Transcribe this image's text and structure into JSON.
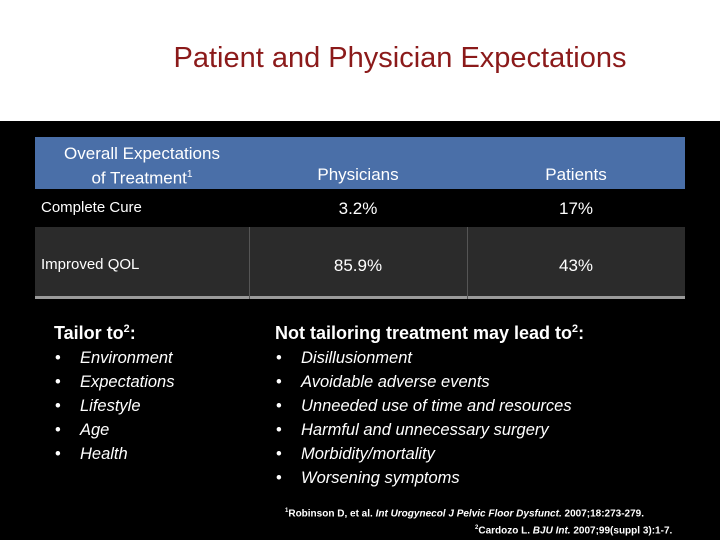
{
  "title": "Patient and Physician Expectations",
  "table": {
    "header_col1_line1": "Overall Expectations",
    "header_col1_line2": "of Treatment",
    "header_col1_sup": "1",
    "header_col2": "Physicians",
    "header_col3": "Patients",
    "rows": [
      {
        "label": "Complete Cure",
        "physicians": "3.2%",
        "patients": "17%"
      },
      {
        "label": "Improved QOL",
        "physicians": "85.9%",
        "patients": "43%"
      }
    ]
  },
  "left_section": {
    "heading": "Tailor to",
    "heading_sup": "2",
    "heading_suffix": ":",
    "bullet": "•",
    "items": [
      "Environment",
      "Expectations",
      "Lifestyle",
      "Age",
      "Health"
    ]
  },
  "right_section": {
    "heading": "Not tailoring treatment may lead to",
    "heading_sup": "2",
    "heading_suffix": ":",
    "bullet": "•",
    "items": [
      "Disillusionment",
      "Avoidable adverse events",
      "Unneeded use of time and resources",
      "Harmful and unnecessary surgery",
      "Morbidity/mortality",
      "Worsening symptoms"
    ]
  },
  "references": {
    "ref1_num": "1",
    "ref1_authors": "Robinson D, et al. ",
    "ref1_journal": "Int Urogynecol J Pelvic Floor Dysfunct.",
    "ref1_details": " 2007;18:273-279.",
    "ref2_num": "2",
    "ref2_authors": "Cardozo L. ",
    "ref2_journal": "BJU Int.",
    "ref2_details": " 2007;99(suppl 3):1-7."
  },
  "colors": {
    "title": "#8b1a1a",
    "table_header": "#4a6fa8",
    "background": "#000000"
  }
}
